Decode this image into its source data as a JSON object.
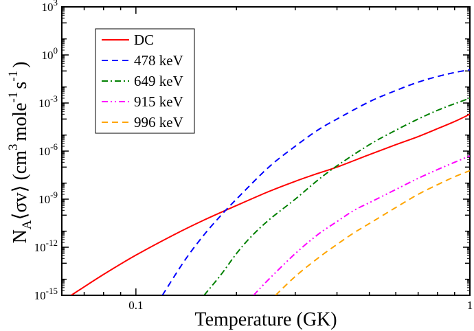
{
  "chart_data": {
    "type": "line",
    "title": "",
    "xlabel": "Temperature (GK)",
    "ylabel": {
      "prefix": "N",
      "sub": "A",
      "middle": "⟨σv⟩ (cm",
      "sup1": "3",
      "mid2": "mole",
      "sup2": "-1",
      "mid3": "s",
      "sup3": "-1",
      "suffix": ")"
    },
    "x_scale": "log",
    "y_scale": "log",
    "xlim": [
      0.06,
      1.0
    ],
    "ylim": [
      1e-15,
      1000
    ],
    "x_ticks": [
      {
        "value": 0.1,
        "label": "0.1"
      },
      {
        "value": 1.0,
        "label": "1"
      }
    ],
    "y_ticks": [
      {
        "value": 1e-15,
        "base": "10",
        "exp": "-15"
      },
      {
        "value": 1e-12,
        "base": "10",
        "exp": "-12"
      },
      {
        "value": 1e-09,
        "base": "10",
        "exp": "-9"
      },
      {
        "value": 1e-06,
        "base": "10",
        "exp": "-6"
      },
      {
        "value": 0.001,
        "base": "10",
        "exp": "-3"
      },
      {
        "value": 1,
        "base": "10",
        "exp": "0"
      },
      {
        "value": 1000,
        "base": "10",
        "exp": "3"
      }
    ],
    "grid": false,
    "legend_position": "top-left",
    "series": [
      {
        "name": "DC",
        "color": "#ff0000",
        "dash": "solid",
        "x": [
          0.064,
          0.08,
          0.1,
          0.13,
          0.16,
          0.2,
          0.25,
          0.3,
          0.35,
          0.4,
          0.5,
          0.6,
          0.7,
          0.8,
          0.9,
          1.0
        ],
        "y": [
          1e-15,
          2e-14,
          3.2e-13,
          6e-12,
          5e-11,
          4e-10,
          3e-09,
          1.3e-08,
          4e-08,
          1e-07,
          6e-07,
          2.5e-06,
          8e-06,
          2.5e-05,
          7e-05,
          0.0002
        ]
      },
      {
        "name": "478 keV",
        "color": "#0000ff",
        "dash": "dashed",
        "x": [
          0.12,
          0.14,
          0.16,
          0.18,
          0.2,
          0.25,
          0.3,
          0.35,
          0.4,
          0.5,
          0.6,
          0.7,
          0.8,
          0.9,
          1.0
        ],
        "y": [
          1e-15,
          1.5e-13,
          6e-12,
          1e-10,
          1e-09,
          1e-07,
          2e-06,
          2e-05,
          0.0001,
          0.0012,
          0.006,
          0.02,
          0.045,
          0.08,
          0.12
        ]
      },
      {
        "name": "649 keV",
        "color": "#008000",
        "dash": "dashdot",
        "x": [
          0.16,
          0.18,
          0.2,
          0.22,
          0.25,
          0.3,
          0.35,
          0.4,
          0.5,
          0.6,
          0.7,
          0.8,
          0.9,
          1.0
        ],
        "y": [
          1e-15,
          2e-14,
          4e-13,
          4e-12,
          5e-11,
          1e-09,
          1.5e-08,
          1.2e-07,
          2.5e-06,
          2e-05,
          0.0001,
          0.00035,
          0.0009,
          0.002
        ]
      },
      {
        "name": "915 keV",
        "color": "#ff00ff",
        "dash": "dashdotdot",
        "x": [
          0.225,
          0.25,
          0.3,
          0.35,
          0.4,
          0.45,
          0.5,
          0.6,
          0.7,
          0.8,
          0.9,
          1.0
        ],
        "y": [
          1e-15,
          1e-14,
          4e-13,
          6e-12,
          4e-11,
          2e-10,
          6e-10,
          4e-09,
          2e-08,
          7e-08,
          2e-07,
          5e-07
        ]
      },
      {
        "name": "996 keV",
        "color": "#ffa500",
        "dash": "dashed",
        "x": [
          0.262,
          0.3,
          0.35,
          0.4,
          0.45,
          0.5,
          0.6,
          0.7,
          0.8,
          0.9,
          1.0
        ],
        "y": [
          1e-15,
          1.5e-14,
          2e-13,
          1.5e-12,
          8e-12,
          3e-11,
          3e-10,
          2e-09,
          8e-09,
          2.5e-08,
          6e-08
        ]
      }
    ]
  }
}
